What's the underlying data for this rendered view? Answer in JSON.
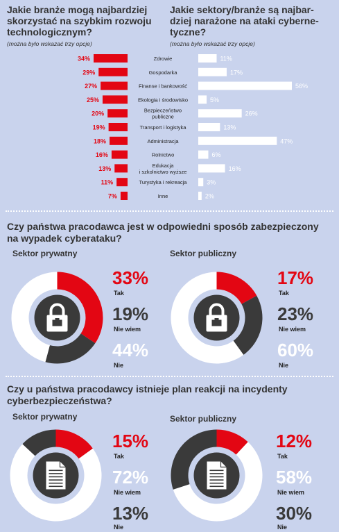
{
  "colors": {
    "red": "#e30613",
    "dark": "#3a3a3a",
    "white": "#ffffff",
    "background": "#c9d3ed"
  },
  "section1": {
    "left_title": [
      "Jakie branże mogą najbardziej",
      "skorzystać na szybkim rozwoju",
      "technologicznym?"
    ],
    "left_note": "(można było wskazać trzy opcje)",
    "right_title": [
      "Jakie sektory/branże są najbar-",
      "dziej narażone na ataki cyberne-",
      "tyczne?"
    ],
    "right_note": "(można było wskazać trzy opcje)"
  },
  "section2": {
    "title": [
      "Czy państwa pracodawca jest w odpowiedni sposób zabezpieczony",
      "na wypadek cyberataku?"
    ],
    "left_sub": "Sektor prywatny",
    "right_sub": "Sektor publiczny",
    "icon": "lock-icon"
  },
  "section3": {
    "title": [
      "Czy u państwa pracodawcy istnieje plan reakcji na incydenty",
      "cyberbezpieczeństwa?"
    ],
    "left_sub": "Sektor prywatny",
    "right_sub": "Sektor publiczny",
    "icon": "document-icon"
  },
  "chart_data": [
    {
      "type": "bar",
      "title": "Jakie branże mogą najbardziej skorzystać na szybkim rozwoju technologicznym?",
      "categories": [
        "Zdrowie",
        "Gospodarka",
        "Finanse i bankowość",
        "Ekologia i środowisko",
        "Bezpieczeństwo publiczne",
        "Transport i logistyka",
        "Administracja",
        "Rolnictwo",
        "Edukacja i szkolnictwo wyższe",
        "Turystyka i rekreacja",
        "Inne"
      ],
      "category_lines": [
        [
          "Zdrowie"
        ],
        [
          "Gospodarka"
        ],
        [
          "Finanse i bankowość"
        ],
        [
          "Ekologia i środowisko"
        ],
        [
          "Bezpieczeństwo",
          "publiczne"
        ],
        [
          "Transport i logistyka"
        ],
        [
          "Administracja"
        ],
        [
          "Rolnictwo"
        ],
        [
          "Edukacja",
          "i szkolnictwo wyższe"
        ],
        [
          "Turystyka i rekreacja"
        ],
        [
          "Inne"
        ]
      ],
      "values": [
        34,
        29,
        27,
        25,
        20,
        19,
        18,
        16,
        13,
        11,
        7
      ],
      "value_labels": [
        "34%",
        "29%",
        "27%",
        "25%",
        "20%",
        "19%",
        "18%",
        "16%",
        "13%",
        "11%",
        "7%"
      ],
      "unit": "%"
    },
    {
      "type": "bar",
      "title": "Jakie sektory/branże są najbardziej narażone na ataki cybernetyczne?",
      "categories": [
        "Zdrowie",
        "Gospodarka",
        "Finanse i bankowość",
        "Ekologia i środowisko",
        "Bezpieczeństwo publiczne",
        "Transport i logistyka",
        "Administracja",
        "Rolnictwo",
        "Edukacja i szkolnictwo wyższe",
        "Turystyka i rekreacja",
        "Inne"
      ],
      "values": [
        11,
        17,
        56,
        5,
        26,
        13,
        47,
        6,
        16,
        3,
        2
      ],
      "value_labels": [
        "11%",
        "17%",
        "56%",
        "5%",
        "26%",
        "13%",
        "47%",
        "6%",
        "16%",
        "3%",
        "2%"
      ],
      "unit": "%"
    },
    {
      "type": "pie",
      "title": "Sektor prywatny",
      "question": "Czy państwa pracodawca jest w odpowiedni sposób zabezpieczony na wypadek cyberataku?",
      "labels": [
        "Tak",
        "Nie wiem",
        "Nie"
      ],
      "values": [
        33,
        19,
        44
      ],
      "value_labels": [
        "33%",
        "19%",
        "44%"
      ]
    },
    {
      "type": "pie",
      "title": "Sektor publiczny",
      "question": "Czy państwa pracodawca jest w odpowiedni sposób zabezpieczony na wypadek cyberataku?",
      "labels": [
        "Tak",
        "Nie wiem",
        "Nie"
      ],
      "values": [
        17,
        23,
        60
      ],
      "value_labels": [
        "17%",
        "23%",
        "60%"
      ]
    },
    {
      "type": "pie",
      "title": "Sektor prywatny",
      "question": "Czy u państwa pracodawcy istnieje plan reakcji na incydenty cyberbezpieczeństwa?",
      "labels": [
        "Tak",
        "Nie wiem",
        "Nie"
      ],
      "values": [
        15,
        72,
        13
      ],
      "value_labels": [
        "15%",
        "72%",
        "13%"
      ]
    },
    {
      "type": "pie",
      "title": "Sektor publiczny",
      "question": "Czy u państwa pracodawcy istnieje plan reakcji na incydenty cyberbezpieczeństwa?",
      "labels": [
        "Tak",
        "Nie wiem",
        "Nie"
      ],
      "values": [
        12,
        58,
        30
      ],
      "value_labels": [
        "12%",
        "58%",
        "30%"
      ]
    }
  ]
}
